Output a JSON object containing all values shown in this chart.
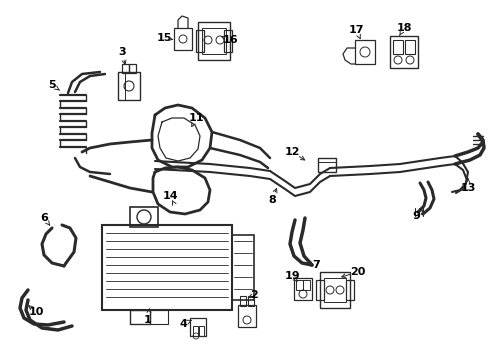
{
  "bg_color": "#ffffff",
  "line_color": "#2a2a2a",
  "text_color": "#000000",
  "lw_tube": 1.6,
  "lw_bracket": 0.9,
  "lw_hose": 2.2
}
